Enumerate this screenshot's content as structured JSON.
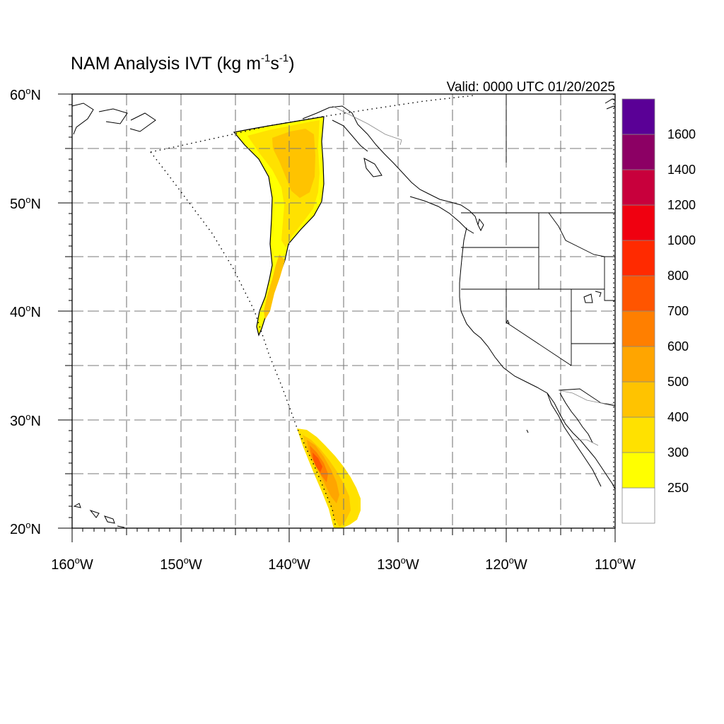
{
  "title": {
    "prefix": "NAM Analysis IVT (kg m",
    "sup1": "-1",
    "mid": "s",
    "sup2": "-1",
    "suffix": ")"
  },
  "valid_label": "Valid: 0000 UTC 01/20/2025",
  "map": {
    "lon_range": [
      -160,
      -110
    ],
    "lat_range": [
      20,
      60
    ],
    "lat_labels": [
      {
        "deg": "60",
        "hemi": "N"
      },
      {
        "deg": "50",
        "hemi": "N"
      },
      {
        "deg": "40",
        "hemi": "N"
      },
      {
        "deg": "30",
        "hemi": "N"
      },
      {
        "deg": "20",
        "hemi": "N"
      }
    ],
    "lon_labels": [
      {
        "deg": "160",
        "hemi": "W"
      },
      {
        "deg": "150",
        "hemi": "W"
      },
      {
        "deg": "140",
        "hemi": "W"
      },
      {
        "deg": "130",
        "hemi": "W"
      },
      {
        "deg": "120",
        "hemi": "W"
      },
      {
        "deg": "110",
        "hemi": "W"
      }
    ],
    "gridline_interval_deg": 5,
    "domain_boundary": "dotted",
    "colors": {
      "background": "#ffffff",
      "coastline": "#000000",
      "grid": "#7a7a7a"
    }
  },
  "colorbar": {
    "levels": [
      "250",
      "300",
      "400",
      "500",
      "600",
      "700",
      "800",
      "1000",
      "1200",
      "1400",
      "1600"
    ],
    "colors": [
      "#ffffff",
      "#ffff00",
      "#ffe100",
      "#ffc300",
      "#ffa500",
      "#ff7f00",
      "#ff5500",
      "#ff2a00",
      "#f00010",
      "#c8003c",
      "#8c0064",
      "#5a0096"
    ]
  }
}
